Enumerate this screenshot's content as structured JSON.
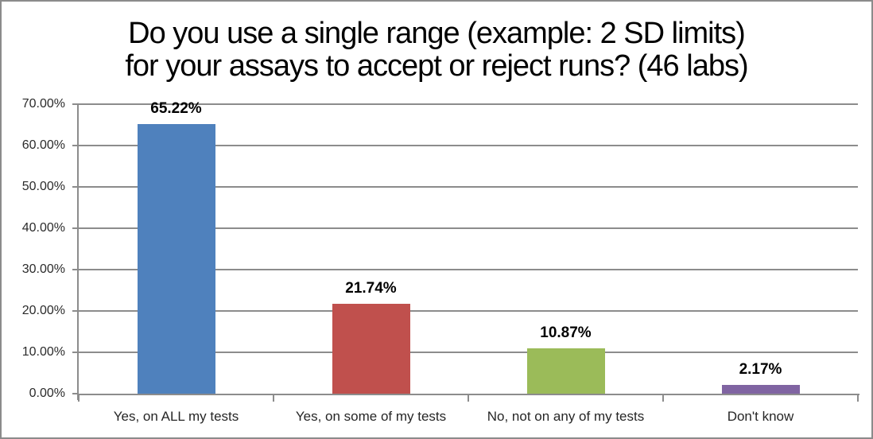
{
  "chart_data": {
    "type": "bar",
    "title": "Do you use a single range (example: 2 SD limits) for your assays to accept or reject runs? (46 labs)",
    "title_lines": [
      "Do you use a single range (example: 2 SD limits)",
      "for your assays to accept or reject runs? (46 labs)"
    ],
    "categories": [
      "Yes, on ALL my tests",
      "Yes, on some of my tests",
      "No, not on any of my tests",
      "Don't know"
    ],
    "values": [
      65.22,
      21.74,
      10.87,
      2.17
    ],
    "value_labels": [
      "65.22%",
      "21.74%",
      "10.87%",
      "2.17%"
    ],
    "bar_colors": [
      "#4F81BD",
      "#C0504D",
      "#9BBB59",
      "#8064A2"
    ],
    "yticks": [
      {
        "value": 70,
        "label": "70.00%"
      },
      {
        "value": 60,
        "label": "60.00%"
      },
      {
        "value": 50,
        "label": "50.00%"
      },
      {
        "value": 40,
        "label": "40.00%"
      },
      {
        "value": 30,
        "label": "30.00%"
      },
      {
        "value": 20,
        "label": "20.00%"
      },
      {
        "value": 10,
        "label": "10.00%"
      },
      {
        "value": 0,
        "label": "0.00%"
      }
    ],
    "ylim": [
      0,
      70
    ],
    "xlabel": "",
    "ylabel": "",
    "grid": true,
    "legend": false
  },
  "style_colors": {
    "gridline": "#8c8c8c",
    "axis": "#8c8c8c",
    "border": "#8b8b8b",
    "background": "#ffffff",
    "title_text": "#000000",
    "tick_label_text": "#2b2b2b",
    "category_label_text": "#262626",
    "value_label_text": "#000000"
  }
}
